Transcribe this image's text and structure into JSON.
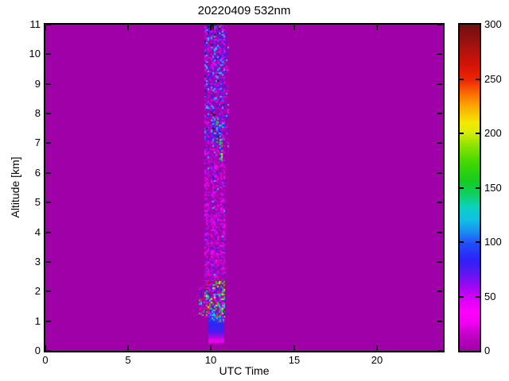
{
  "chart_data": {
    "type": "heatmap",
    "title": "20220409 532nm",
    "xlabel": "UTC Time",
    "ylabel": "Altitude [km]",
    "xlim": [
      0,
      24
    ],
    "ylim": [
      0,
      11
    ],
    "x_ticks": [
      0,
      5,
      10,
      15,
      20
    ],
    "y_ticks": [
      0,
      1,
      2,
      3,
      4,
      5,
      6,
      7,
      8,
      9,
      10,
      11
    ],
    "grid": false,
    "background_value": 0,
    "background_color": "#A000A8",
    "colorbar": {
      "min": 0,
      "max": 300,
      "ticks": [
        0,
        50,
        100,
        150,
        200,
        250,
        300
      ],
      "gradient_stops": [
        [
          0.0,
          "#A000A8"
        ],
        [
          0.05,
          "#C402C6"
        ],
        [
          0.09,
          "#F400F6"
        ],
        [
          0.12,
          "#FB02FB"
        ],
        [
          0.16,
          "#D800FC"
        ],
        [
          0.2,
          "#9909F2"
        ],
        [
          0.24,
          "#5A17F2"
        ],
        [
          0.28,
          "#2B22F8"
        ],
        [
          0.33,
          "#2150FA"
        ],
        [
          0.36,
          "#1A86F2"
        ],
        [
          0.4,
          "#10BEE6"
        ],
        [
          0.44,
          "#0CD2C0"
        ],
        [
          0.48,
          "#0FD060"
        ],
        [
          0.52,
          "#14CC20"
        ],
        [
          0.58,
          "#46D800"
        ],
        [
          0.63,
          "#8CE400"
        ],
        [
          0.67,
          "#D8EC00"
        ],
        [
          0.7,
          "#F4E800"
        ],
        [
          0.75,
          "#FCA800"
        ],
        [
          0.79,
          "#FA6A00"
        ],
        [
          0.83,
          "#EE2600"
        ],
        [
          0.88,
          "#D21208"
        ],
        [
          0.93,
          "#A8120E"
        ],
        [
          1.0,
          "#6E0F0F"
        ]
      ]
    },
    "palette_colors": {
      "bg": "#A000A8",
      "mag": "#C704CE",
      "brightmag": "#F403F8",
      "violet": "#7A16EF",
      "blue": "#2424F7",
      "ltblue": "#2E6BFA",
      "cyan": "#15C8E8",
      "green": "#1ACC24",
      "yellow": "#E8E800",
      "red": "#E81400",
      "darkred": "#8C1A10",
      "black": "#151515"
    },
    "data_window_utc": [
      9.28,
      11.05
    ],
    "regions": [
      {
        "name": "column-upper",
        "utc": [
          9.58,
          10.83
        ],
        "alt": [
          7.05,
          11.0
        ],
        "palette": {
          "bg": 0.3,
          "mag": 0.15,
          "brightmag": 0.1,
          "violet": 0.15,
          "blue": 0.15,
          "ltblue": 0.03,
          "cyan": 0.09,
          "black": 0.02
        }
      },
      {
        "name": "column-mid",
        "utc": [
          9.58,
          10.78
        ],
        "alt": [
          2.35,
          7.05
        ],
        "palette": {
          "bg": 0.4,
          "mag": 0.25,
          "brightmag": 0.18,
          "violet": 0.08,
          "blue": 0.04,
          "cyan": 0.01
        }
      },
      {
        "name": "gap-1",
        "utc": [
          9.88,
          9.99
        ],
        "alt": [
          0.6,
          10.7
        ],
        "palette": {
          "bg": 0.7,
          "mag": 0.15,
          "violet": 0.04
        }
      },
      {
        "name": "gap-2",
        "utc": [
          10.46,
          10.57
        ],
        "alt": [
          0.6,
          6.3
        ],
        "palette": {
          "bg": 0.7,
          "mag": 0.15
        }
      },
      {
        "name": "cloud-streak-a",
        "utc": [
          10.3,
          10.42
        ],
        "alt": [
          6.95,
          7.75
        ],
        "palette": {
          "cyan": 0.28,
          "green": 0.24,
          "blue": 0.18,
          "ltblue": 0.06,
          "yellow": 0.05,
          "bg": 0.1
        }
      },
      {
        "name": "cloud-streak-b",
        "utc": [
          10.53,
          10.67
        ],
        "alt": [
          6.35,
          7.25
        ],
        "palette": {
          "green": 0.28,
          "cyan": 0.18,
          "yellow": 0.12,
          "blue": 0.14,
          "red": 0.04,
          "bg": 0.1
        }
      },
      {
        "name": "low-noise-left",
        "utc": [
          9.28,
          9.6
        ],
        "alt": [
          1.15,
          2.2
        ],
        "palette": {
          "bg": 0.62,
          "mag": 0.1,
          "green": 0.06,
          "red": 0.04,
          "cyan": 0.05,
          "blue": 0.05,
          "brightmag": 0.04
        }
      },
      {
        "name": "low-noise-main",
        "utc": [
          9.6,
          10.85
        ],
        "alt": [
          1.15,
          2.35
        ],
        "palette": {
          "bg": 0.2,
          "mag": 0.14,
          "brightmag": 0.08,
          "blue": 0.12,
          "cyan": 0.1,
          "green": 0.12,
          "yellow": 0.06,
          "red": 0.06,
          "darkred": 0.05,
          "violet": 0.04
        }
      },
      {
        "name": "boundary-layer-block",
        "utc": [
          9.82,
          10.8
        ],
        "alt": [
          0.25,
          1.18
        ],
        "fill": "vgradient",
        "stops": [
          [
            0.0,
            "#C800C8"
          ],
          [
            0.1,
            "#F000F0"
          ],
          [
            0.22,
            "#B008E0"
          ],
          [
            0.42,
            "#5018F0"
          ],
          [
            0.72,
            "#2828F8"
          ],
          [
            1.0,
            "#3848F8"
          ]
        ]
      },
      {
        "name": "boundary-layer-noise",
        "utc": [
          9.82,
          10.8
        ],
        "alt": [
          1.0,
          1.35
        ],
        "palette": {
          "blue": 0.2,
          "cyan": 0.12,
          "green": 0.06,
          "brightmag": 0.08,
          "violet": 0.08,
          "darkred": 0.03
        }
      },
      {
        "name": "top-patch",
        "utc": [
          9.78,
          10.15
        ],
        "alt": [
          10.8,
          11.0
        ],
        "palette": {
          "black": 0.45,
          "blue": 0.2,
          "violet": 0.1,
          "bg": 0.15
        }
      },
      {
        "name": "right-sparse",
        "utc": [
          10.88,
          11.05
        ],
        "alt": [
          6.5,
          11.0
        ],
        "palette": {
          "bg": 0.76,
          "blue": 0.08,
          "cyan": 0.05,
          "brightmag": 0.05,
          "mag": 0.06
        }
      }
    ]
  }
}
